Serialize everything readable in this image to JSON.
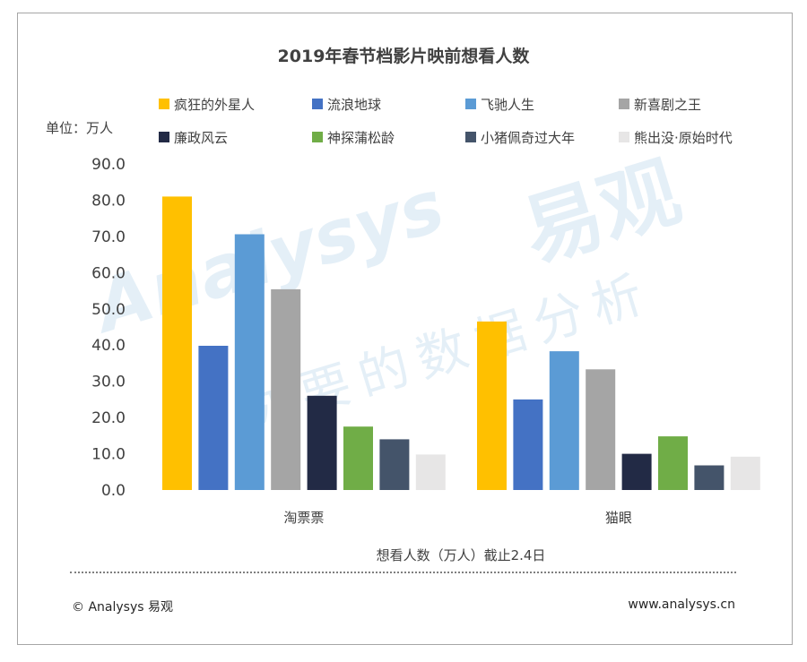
{
  "chart_data": {
    "type": "bar",
    "title": "2019年春节档影片映前想看人数",
    "unit_label": "单位：万人",
    "xlabel": "想看人数（万人）截止2.4日",
    "categories": [
      "淘票票",
      "猫眼"
    ],
    "ylim": [
      0,
      90
    ],
    "yticks": [
      "0.0",
      "10.0",
      "20.0",
      "30.0",
      "40.0",
      "50.0",
      "60.0",
      "70.0",
      "80.0",
      "90.0"
    ],
    "grid": false,
    "legend_position": "top",
    "series": [
      {
        "name": "疯狂的外星人",
        "color": "#FFC000",
        "values": [
          81.0,
          46.5
        ]
      },
      {
        "name": "流浪地球",
        "color": "#4472C4",
        "values": [
          39.8,
          25.0
        ]
      },
      {
        "name": "飞驰人生",
        "color": "#5B9BD5",
        "values": [
          70.6,
          38.3
        ]
      },
      {
        "name": "新喜剧之王",
        "color": "#A5A5A5",
        "values": [
          55.4,
          33.3
        ]
      },
      {
        "name": "廉政风云",
        "color": "#222A45",
        "values": [
          26.0,
          10.0
        ]
      },
      {
        "name": "神探蒲松龄",
        "color": "#70AD47",
        "values": [
          17.5,
          14.8
        ]
      },
      {
        "name": "小猪佩奇过大年",
        "color": "#44546A",
        "values": [
          14.0,
          6.8
        ]
      },
      {
        "name": "熊出没·原始时代",
        "color": "#E7E6E6",
        "values": [
          9.8,
          9.2
        ]
      }
    ]
  },
  "watermark": {
    "brand_latin": "Analysys",
    "brand_cn": "易观",
    "slogan": "你要的数据分析"
  },
  "footer": {
    "copyright": "© Analysys 易观",
    "website": "www.analysys.cn"
  }
}
